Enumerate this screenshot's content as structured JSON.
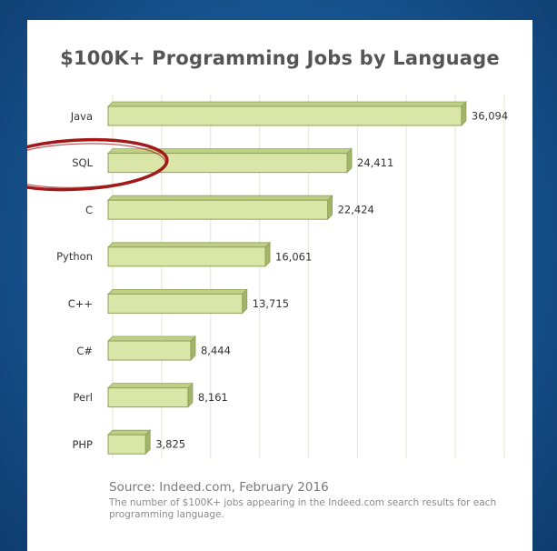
{
  "chart_data": {
    "type": "bar",
    "orientation": "horizontal",
    "title": "$100K+ Programming Jobs by Language",
    "categories": [
      "Java",
      "SQL",
      "C",
      "Python",
      "C++",
      "C#",
      "Perl",
      "PHP"
    ],
    "values": [
      36094,
      24411,
      22424,
      16061,
      13715,
      8444,
      8161,
      3825
    ],
    "value_labels": [
      "36,094",
      "24,411",
      "22,424",
      "16,061",
      "13,715",
      "8,444",
      "8,161",
      "3,825"
    ],
    "xlim": [
      0,
      40000
    ],
    "grid": true,
    "highlight": "SQL"
  },
  "footer": {
    "source": "Source: Indeed.com, February 2016",
    "note": "The number of $100K+ jobs appearing in the Indeed.com search results for each programming language."
  },
  "colors": {
    "bar_fill": "#d9e6a7",
    "bar_top": "#bfcf86",
    "bar_side": "#a3b46b",
    "bar_edge": "#8fa159",
    "highlight_ring": "#a3191a",
    "grid": "#ede9cf",
    "background": "#17538f"
  }
}
